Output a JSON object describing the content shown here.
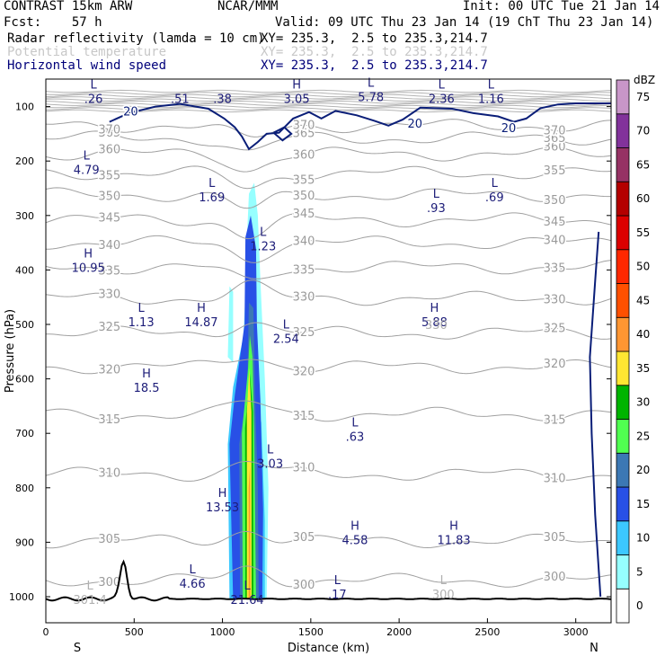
{
  "header": {
    "model": "CONTRAST 15km ARW",
    "org": "NCAR/MMM",
    "init": "Init: 00 UTC Tue 21 Jan 14",
    "fcst": "Fcst:    57 h",
    "valid": "Valid: 09 UTC Thu 23 Jan 14 (19 ChT Thu 23 Jan 14)",
    "field1_name": "Radar reflectivity (lamda = 10 cm)",
    "field1_xy": "XY= 235.3,  2.5 to 235.3,214.7",
    "field2_name": "Potential temperature",
    "field2_xy": "XY= 235.3,  2.5 to 235.3,214.7",
    "field3_name": "Horizontal wind speed",
    "field3_xy": "XY= 235.3,  2.5 to 235.3,214.7"
  },
  "chart_data": {
    "type": "cross-section",
    "xlabel": "Distance (km)",
    "ylabel": "Pressure (hPa)",
    "xlim": [
      0,
      3200
    ],
    "ylim": [
      1045,
      65
    ],
    "x_ticks": [
      0,
      500,
      1000,
      1500,
      2000,
      2500,
      3000
    ],
    "y_ticks": [
      100,
      200,
      300,
      400,
      500,
      600,
      700,
      800,
      900,
      1000
    ],
    "end_labels": {
      "left": "S",
      "right": "N"
    },
    "colorbar": {
      "unit": "dBZ",
      "levels": [
        0,
        5,
        10,
        15,
        20,
        25,
        30,
        35,
        40,
        45,
        50,
        55,
        60,
        65,
        70,
        75
      ],
      "colors": [
        "#ffffff",
        "#96ffff",
        "#3cc8ff",
        "#2850e6",
        "#3c78b4",
        "#50ff50",
        "#00b400",
        "#ffe632",
        "#ff9632",
        "#ff5000",
        "#ff2800",
        "#dc0000",
        "#b40000",
        "#963264",
        "#82329b",
        "#c896c8"
      ]
    },
    "theta_contours": [
      300,
      305,
      310,
      315,
      320,
      325,
      330,
      335,
      340,
      345,
      350,
      355,
      360,
      365,
      370
    ],
    "wind_contours": [
      20
    ],
    "terrain_peak": {
      "x": 440,
      "p": 935
    },
    "labels": [
      {
        "t": "L",
        "v": ".26",
        "x": 270,
        "p": 82,
        "c": "wind"
      },
      {
        "t": "",
        "v": ".51",
        "x": 760,
        "p": 82,
        "c": "wind"
      },
      {
        "t": "",
        "v": ".38",
        "x": 1000,
        "p": 82,
        "c": "wind"
      },
      {
        "t": "H",
        "v": "3.05",
        "x": 1420,
        "p": 82,
        "c": "wind"
      },
      {
        "t": "L",
        "v": "5.78",
        "x": 1840,
        "p": 78,
        "c": "wind"
      },
      {
        "t": "L",
        "v": "2.36",
        "x": 2240,
        "p": 82,
        "c": "wind"
      },
      {
        "t": "L",
        "v": "1.16",
        "x": 2520,
        "p": 82,
        "c": "wind"
      },
      {
        "t": "L",
        "v": "4.79",
        "x": 230,
        "p": 212,
        "c": "wind"
      },
      {
        "t": "L",
        "v": "1.69",
        "x": 940,
        "p": 262,
        "c": "wind"
      },
      {
        "t": "L",
        "v": ".93",
        "x": 2210,
        "p": 282,
        "c": "wind"
      },
      {
        "t": "L",
        "v": ".69",
        "x": 2540,
        "p": 262,
        "c": "wind"
      },
      {
        "t": "L",
        "v": "1.23",
        "x": 1230,
        "p": 352,
        "c": "wind"
      },
      {
        "t": "H",
        "v": "10.95",
        "x": 240,
        "p": 392,
        "c": "wind"
      },
      {
        "t": "L",
        "v": "1.13",
        "x": 540,
        "p": 492,
        "c": "wind"
      },
      {
        "t": "H",
        "v": "14.87",
        "x": 880,
        "p": 492,
        "c": "wind"
      },
      {
        "t": "H",
        "v": "5.88",
        "x": 2200,
        "p": 492,
        "c": "wind"
      },
      {
        "t": "L",
        "v": "2.54",
        "x": 1360,
        "p": 522,
        "c": "wind"
      },
      {
        "t": "H",
        "v": "18.5",
        "x": 570,
        "p": 612,
        "c": "wind"
      },
      {
        "t": "L",
        "v": ".63",
        "x": 1750,
        "p": 702,
        "c": "wind"
      },
      {
        "t": "L",
        "v": "3.03",
        "x": 1270,
        "p": 752,
        "c": "wind"
      },
      {
        "t": "H",
        "v": "13.53",
        "x": 1000,
        "p": 832,
        "c": "wind"
      },
      {
        "t": "H",
        "v": "4.58",
        "x": 1750,
        "p": 892,
        "c": "wind"
      },
      {
        "t": "H",
        "v": "11.83",
        "x": 2310,
        "p": 892,
        "c": "wind"
      },
      {
        "t": "L",
        "v": "4.66",
        "x": 830,
        "p": 972,
        "c": "wind"
      },
      {
        "t": "L",
        "v": ".17",
        "x": 1650,
        "p": 992,
        "c": "wind"
      },
      {
        "t": "L",
        "v": "21.64",
        "x": 1140,
        "p": 1002,
        "c": "wind"
      },
      {
        "t": "L",
        "v": "301.4",
        "x": 250,
        "p": 1002,
        "c": "theta"
      },
      {
        "t": "L",
        "v": "300",
        "x": 2250,
        "p": 992,
        "c": "theta"
      },
      {
        "t": "",
        "v": "330",
        "x": 2210,
        "p": 497,
        "c": "theta"
      }
    ]
  }
}
